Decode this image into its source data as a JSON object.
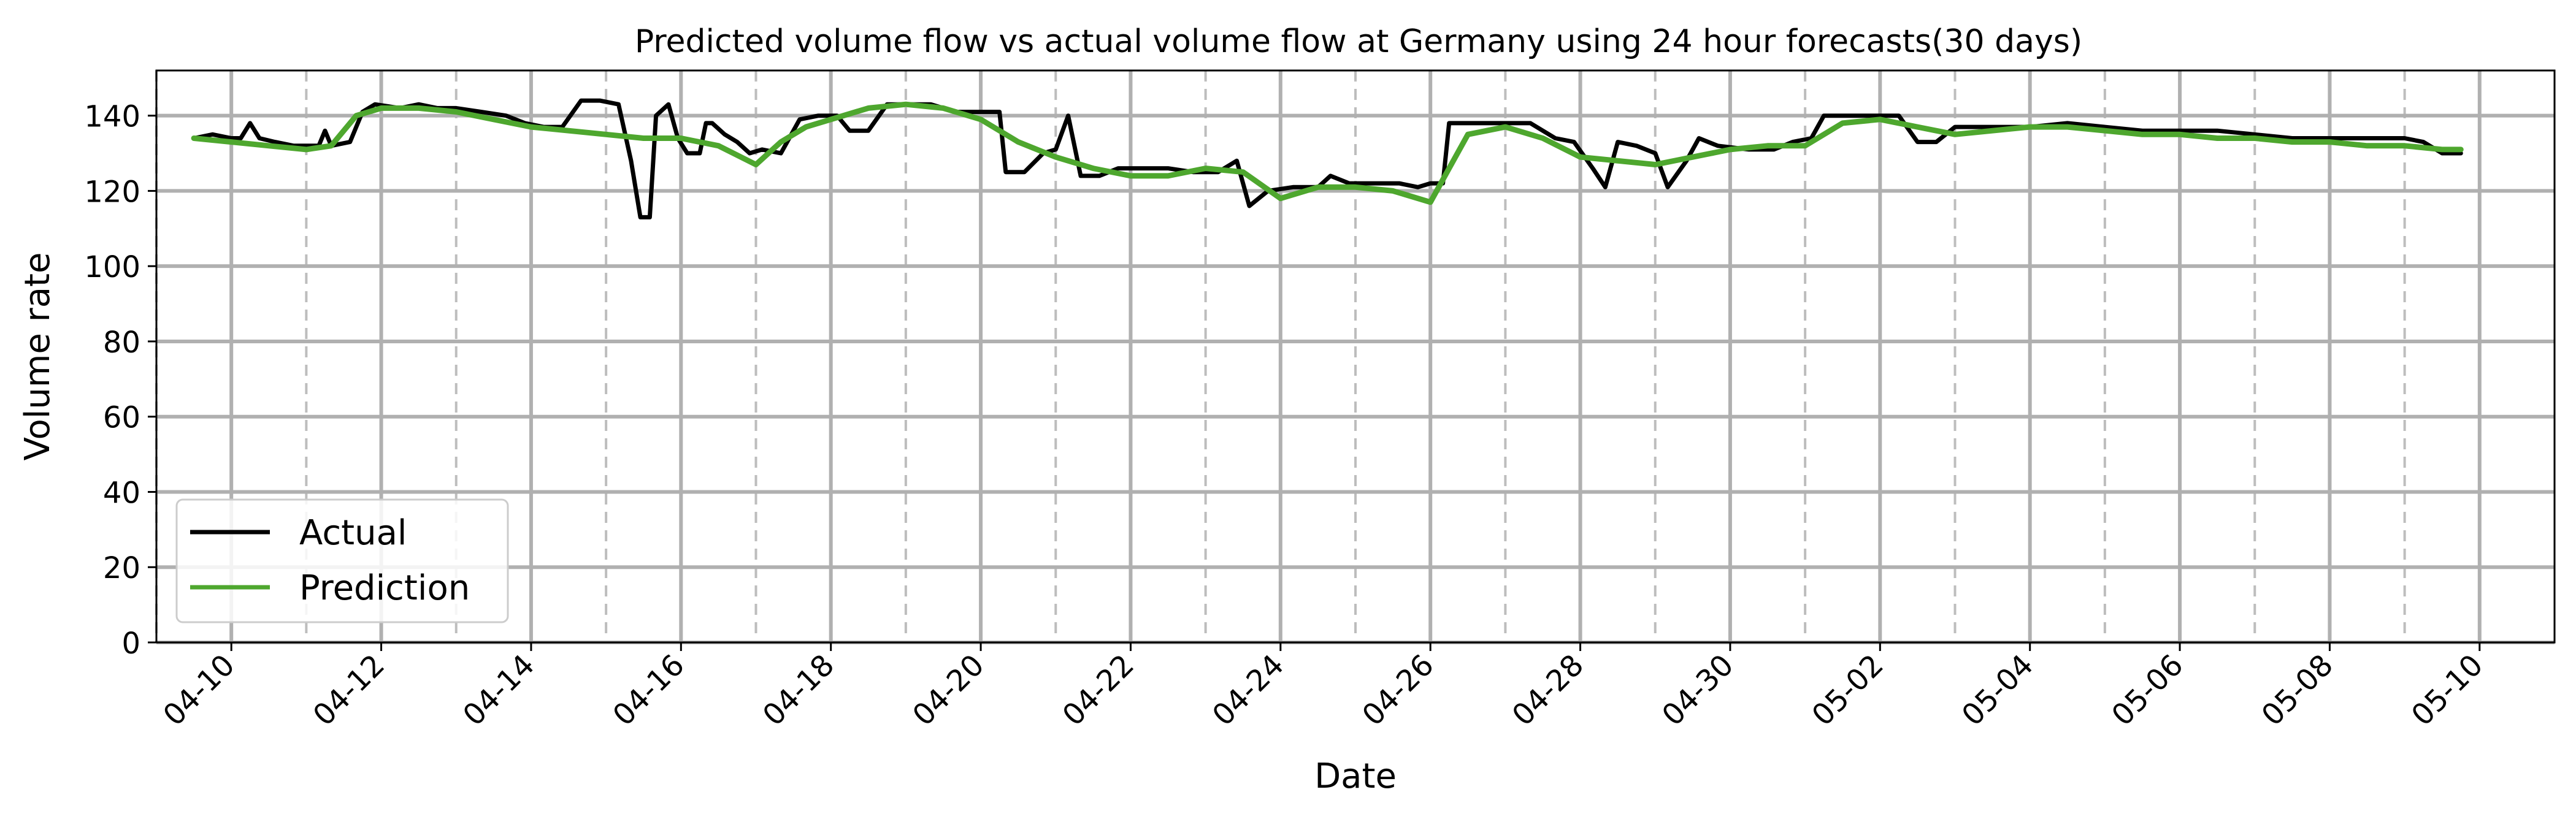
{
  "chart_data": {
    "type": "line",
    "title": "Predicted volume flow vs actual volume flow at Germany using 24 hour forecasts(30 days)",
    "xlabel": "Date",
    "ylabel": "Volume rate",
    "xlim": [
      "2024-04-09T00:00",
      "2024-05-11T00:00"
    ],
    "ylim": [
      0,
      152
    ],
    "yticks": [
      0,
      20,
      40,
      60,
      80,
      100,
      120,
      140
    ],
    "xticks": [
      {
        "date": "2024-04-10",
        "label": "04-10"
      },
      {
        "date": "2024-04-12",
        "label": "04-12"
      },
      {
        "date": "2024-04-14",
        "label": "04-14"
      },
      {
        "date": "2024-04-16",
        "label": "04-16"
      },
      {
        "date": "2024-04-18",
        "label": "04-18"
      },
      {
        "date": "2024-04-20",
        "label": "04-20"
      },
      {
        "date": "2024-04-22",
        "label": "04-22"
      },
      {
        "date": "2024-04-24",
        "label": "04-24"
      },
      {
        "date": "2024-04-26",
        "label": "04-26"
      },
      {
        "date": "2024-04-28",
        "label": "04-28"
      },
      {
        "date": "2024-04-30",
        "label": "04-30"
      },
      {
        "date": "2024-05-02",
        "label": "05-02"
      },
      {
        "date": "2024-05-04",
        "label": "05-04"
      },
      {
        "date": "2024-05-06",
        "label": "05-06"
      },
      {
        "date": "2024-05-08",
        "label": "05-08"
      },
      {
        "date": "2024-05-10",
        "label": "05-10"
      }
    ],
    "minor_grid_dates": [
      "2024-04-09",
      "2024-04-11",
      "2024-04-13",
      "2024-04-15",
      "2024-04-17",
      "2024-04-19",
      "2024-04-21",
      "2024-04-23",
      "2024-04-25",
      "2024-04-27",
      "2024-04-29",
      "2024-05-01",
      "2024-05-03",
      "2024-05-05",
      "2024-05-07",
      "2024-05-09"
    ],
    "grid": true,
    "legend": "lower-left",
    "colors": {
      "actual": "#000000",
      "prediction": "#4ea72e",
      "major_grid": "#b0b0b0",
      "minor_grid": "#bdbdbd"
    },
    "series": [
      {
        "name": "Actual",
        "color": "#000000",
        "points": [
          [
            "2024-04-09T12:00",
            134
          ],
          [
            "2024-04-09T18:00",
            135
          ],
          [
            "2024-04-10T00:00",
            134
          ],
          [
            "2024-04-10T03:00",
            134
          ],
          [
            "2024-04-10T06:00",
            138
          ],
          [
            "2024-04-10T09:00",
            134
          ],
          [
            "2024-04-10T14:00",
            133
          ],
          [
            "2024-04-10T20:00",
            132
          ],
          [
            "2024-04-11T00:00",
            132
          ],
          [
            "2024-04-11T04:00",
            132
          ],
          [
            "2024-04-11T06:00",
            136
          ],
          [
            "2024-04-11T08:00",
            132
          ],
          [
            "2024-04-11T14:00",
            133
          ],
          [
            "2024-04-11T18:00",
            141
          ],
          [
            "2024-04-11T22:00",
            143
          ],
          [
            "2024-04-12T06:00",
            142
          ],
          [
            "2024-04-12T12:00",
            143
          ],
          [
            "2024-04-12T18:00",
            142
          ],
          [
            "2024-04-13T00:00",
            142
          ],
          [
            "2024-04-13T08:00",
            141
          ],
          [
            "2024-04-13T16:00",
            140
          ],
          [
            "2024-04-13T22:00",
            138
          ],
          [
            "2024-04-14T04:00",
            137
          ],
          [
            "2024-04-14T10:00",
            137
          ],
          [
            "2024-04-14T16:00",
            144
          ],
          [
            "2024-04-14T22:00",
            144
          ],
          [
            "2024-04-15T04:00",
            143
          ],
          [
            "2024-04-15T08:00",
            128
          ],
          [
            "2024-04-15T11:00",
            113
          ],
          [
            "2024-04-15T14:00",
            113
          ],
          [
            "2024-04-15T16:00",
            140
          ],
          [
            "2024-04-15T20:00",
            143
          ],
          [
            "2024-04-15T23:00",
            134
          ],
          [
            "2024-04-16T02:00",
            130
          ],
          [
            "2024-04-16T06:00",
            130
          ],
          [
            "2024-04-16T08:00",
            138
          ],
          [
            "2024-04-16T10:00",
            138
          ],
          [
            "2024-04-16T14:00",
            135
          ],
          [
            "2024-04-16T18:00",
            133
          ],
          [
            "2024-04-16T22:00",
            130
          ],
          [
            "2024-04-17T02:00",
            131
          ],
          [
            "2024-04-17T08:00",
            130
          ],
          [
            "2024-04-17T14:00",
            139
          ],
          [
            "2024-04-17T20:00",
            140
          ],
          [
            "2024-04-18T02:00",
            140
          ],
          [
            "2024-04-18T06:00",
            136
          ],
          [
            "2024-04-18T12:00",
            136
          ],
          [
            "2024-04-18T18:00",
            143
          ],
          [
            "2024-04-19T00:00",
            143
          ],
          [
            "2024-04-19T08:00",
            143
          ],
          [
            "2024-04-19T16:00",
            141
          ],
          [
            "2024-04-20T00:00",
            141
          ],
          [
            "2024-04-20T06:00",
            141
          ],
          [
            "2024-04-20T08:00",
            125
          ],
          [
            "2024-04-20T14:00",
            125
          ],
          [
            "2024-04-20T20:00",
            130
          ],
          [
            "2024-04-21T00:00",
            131
          ],
          [
            "2024-04-21T04:00",
            140
          ],
          [
            "2024-04-21T08:00",
            124
          ],
          [
            "2024-04-21T14:00",
            124
          ],
          [
            "2024-04-21T20:00",
            126
          ],
          [
            "2024-04-22T04:00",
            126
          ],
          [
            "2024-04-22T12:00",
            126
          ],
          [
            "2024-04-22T20:00",
            125
          ],
          [
            "2024-04-23T04:00",
            125
          ],
          [
            "2024-04-23T10:00",
            128
          ],
          [
            "2024-04-23T14:00",
            116
          ],
          [
            "2024-04-23T20:00",
            120
          ],
          [
            "2024-04-24T04:00",
            121
          ],
          [
            "2024-04-24T12:00",
            121
          ],
          [
            "2024-04-24T16:00",
            124
          ],
          [
            "2024-04-24T22:00",
            122
          ],
          [
            "2024-04-25T06:00",
            122
          ],
          [
            "2024-04-25T14:00",
            122
          ],
          [
            "2024-04-25T20:00",
            121
          ],
          [
            "2024-04-26T00:00",
            122
          ],
          [
            "2024-04-26T04:00",
            122
          ],
          [
            "2024-04-26T06:00",
            138
          ],
          [
            "2024-04-26T14:00",
            138
          ],
          [
            "2024-04-27T00:00",
            138
          ],
          [
            "2024-04-27T08:00",
            138
          ],
          [
            "2024-04-27T16:00",
            134
          ],
          [
            "2024-04-27T22:00",
            133
          ],
          [
            "2024-04-28T04:00",
            126
          ],
          [
            "2024-04-28T08:00",
            121
          ],
          [
            "2024-04-28T12:00",
            133
          ],
          [
            "2024-04-28T18:00",
            132
          ],
          [
            "2024-04-29T00:00",
            130
          ],
          [
            "2024-04-29T04:00",
            121
          ],
          [
            "2024-04-29T10:00",
            128
          ],
          [
            "2024-04-29T14:00",
            134
          ],
          [
            "2024-04-29T20:00",
            132
          ],
          [
            "2024-04-30T06:00",
            131
          ],
          [
            "2024-04-30T14:00",
            131
          ],
          [
            "2024-04-30T20:00",
            133
          ],
          [
            "2024-05-01T02:00",
            134
          ],
          [
            "2024-05-01T06:00",
            140
          ],
          [
            "2024-05-01T14:00",
            140
          ],
          [
            "2024-05-01T22:00",
            140
          ],
          [
            "2024-05-02T06:00",
            140
          ],
          [
            "2024-05-02T12:00",
            133
          ],
          [
            "2024-05-02T18:00",
            133
          ],
          [
            "2024-05-03T00:00",
            137
          ],
          [
            "2024-05-03T12:00",
            137
          ],
          [
            "2024-05-04T00:00",
            137
          ],
          [
            "2024-05-04T12:00",
            138
          ],
          [
            "2024-05-05T00:00",
            137
          ],
          [
            "2024-05-05T12:00",
            136
          ],
          [
            "2024-05-06T00:00",
            136
          ],
          [
            "2024-05-06T12:00",
            136
          ],
          [
            "2024-05-07T00:00",
            135
          ],
          [
            "2024-05-07T12:00",
            134
          ],
          [
            "2024-05-08T00:00",
            134
          ],
          [
            "2024-05-08T12:00",
            134
          ],
          [
            "2024-05-09T00:00",
            134
          ],
          [
            "2024-05-09T06:00",
            133
          ],
          [
            "2024-05-09T12:00",
            130
          ],
          [
            "2024-05-09T18:00",
            130
          ]
        ]
      },
      {
        "name": "Prediction",
        "color": "#4ea72e",
        "points": [
          [
            "2024-04-09T12:00",
            134
          ],
          [
            "2024-04-10T00:00",
            133
          ],
          [
            "2024-04-10T12:00",
            132
          ],
          [
            "2024-04-11T00:00",
            131
          ],
          [
            "2024-04-11T08:00",
            132
          ],
          [
            "2024-04-11T16:00",
            140
          ],
          [
            "2024-04-12T00:00",
            142
          ],
          [
            "2024-04-12T12:00",
            142
          ],
          [
            "2024-04-13T00:00",
            141
          ],
          [
            "2024-04-13T12:00",
            139
          ],
          [
            "2024-04-14T00:00",
            137
          ],
          [
            "2024-04-14T12:00",
            136
          ],
          [
            "2024-04-15T00:00",
            135
          ],
          [
            "2024-04-15T12:00",
            134
          ],
          [
            "2024-04-16T00:00",
            134
          ],
          [
            "2024-04-16T12:00",
            132
          ],
          [
            "2024-04-17T00:00",
            127
          ],
          [
            "2024-04-17T08:00",
            133
          ],
          [
            "2024-04-17T16:00",
            137
          ],
          [
            "2024-04-18T00:00",
            139
          ],
          [
            "2024-04-18T12:00",
            142
          ],
          [
            "2024-04-19T00:00",
            143
          ],
          [
            "2024-04-19T12:00",
            142
          ],
          [
            "2024-04-20T00:00",
            139
          ],
          [
            "2024-04-20T12:00",
            133
          ],
          [
            "2024-04-21T00:00",
            129
          ],
          [
            "2024-04-21T12:00",
            126
          ],
          [
            "2024-04-22T00:00",
            124
          ],
          [
            "2024-04-22T12:00",
            124
          ],
          [
            "2024-04-23T00:00",
            126
          ],
          [
            "2024-04-23T12:00",
            125
          ],
          [
            "2024-04-24T00:00",
            118
          ],
          [
            "2024-04-24T12:00",
            121
          ],
          [
            "2024-04-25T00:00",
            121
          ],
          [
            "2024-04-25T12:00",
            120
          ],
          [
            "2024-04-26T00:00",
            117
          ],
          [
            "2024-04-26T06:00",
            126
          ],
          [
            "2024-04-26T12:00",
            135
          ],
          [
            "2024-04-27T00:00",
            137
          ],
          [
            "2024-04-27T12:00",
            134
          ],
          [
            "2024-04-28T00:00",
            129
          ],
          [
            "2024-04-28T12:00",
            128
          ],
          [
            "2024-04-29T00:00",
            127
          ],
          [
            "2024-04-29T12:00",
            129
          ],
          [
            "2024-04-30T00:00",
            131
          ],
          [
            "2024-04-30T12:00",
            132
          ],
          [
            "2024-05-01T00:00",
            132
          ],
          [
            "2024-05-01T12:00",
            138
          ],
          [
            "2024-05-02T00:00",
            139
          ],
          [
            "2024-05-02T12:00",
            137
          ],
          [
            "2024-05-03T00:00",
            135
          ],
          [
            "2024-05-03T12:00",
            136
          ],
          [
            "2024-05-04T00:00",
            137
          ],
          [
            "2024-05-04T12:00",
            137
          ],
          [
            "2024-05-05T00:00",
            136
          ],
          [
            "2024-05-05T12:00",
            135
          ],
          [
            "2024-05-06T00:00",
            135
          ],
          [
            "2024-05-06T12:00",
            134
          ],
          [
            "2024-05-07T00:00",
            134
          ],
          [
            "2024-05-07T12:00",
            133
          ],
          [
            "2024-05-08T00:00",
            133
          ],
          [
            "2024-05-08T12:00",
            132
          ],
          [
            "2024-05-09T00:00",
            132
          ],
          [
            "2024-05-09T12:00",
            131
          ],
          [
            "2024-05-09T18:00",
            131
          ]
        ]
      }
    ]
  }
}
